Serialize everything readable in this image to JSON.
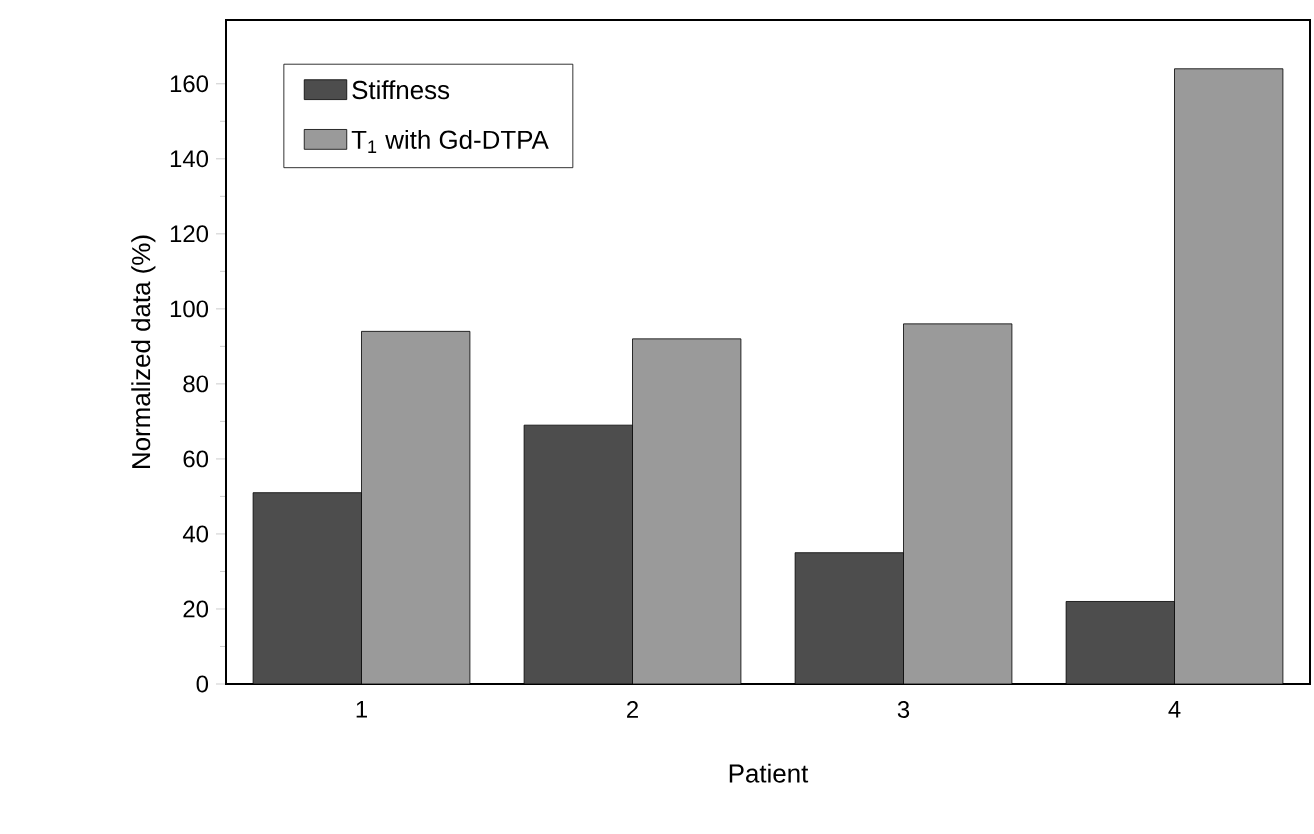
{
  "chart_data": {
    "type": "bar",
    "xlabel": "Patient",
    "ylabel": "Normalized data (%)",
    "categories": [
      "1",
      "2",
      "3",
      "4"
    ],
    "series": [
      {
        "name": "Stiffness",
        "color": "#4d4d4d",
        "values": [
          51,
          69,
          35,
          22
        ]
      },
      {
        "name": "T$_{1}$ with Gd-DTPA",
        "color": "#9a9a9a",
        "values": [
          94,
          92,
          96,
          164
        ]
      }
    ],
    "ylim": [
      0,
      177
    ],
    "yticks": [
      0,
      20,
      40,
      60,
      80,
      100,
      120,
      140,
      160
    ],
    "legend": "top left",
    "grid": false
  }
}
